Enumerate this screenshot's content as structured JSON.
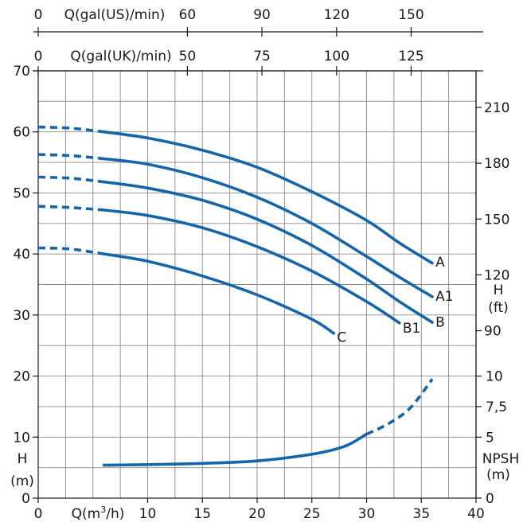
{
  "colors": {
    "curve": "#1565a8",
    "grid": "#8a8a8a",
    "axis": "#1a1a1a",
    "background": "#ffffff"
  },
  "chart_data": {
    "type": "line",
    "grid": true,
    "x": {
      "label_base": "Q(m",
      "label_sup": "3",
      "label_tail": "/h)",
      "range": [
        0,
        40
      ],
      "ticks": [
        0,
        10,
        15,
        20,
        25,
        30,
        35,
        40
      ]
    },
    "y_left": {
      "label": [
        "H",
        "(m)"
      ],
      "range": [
        0,
        70
      ],
      "ticks": [
        0,
        10,
        20,
        30,
        40,
        50,
        60,
        70
      ]
    },
    "top_axis_us": {
      "label": "Q(gal(US)/min)",
      "ticks": [
        {
          "label": "0",
          "x": 0
        },
        {
          "label": "60",
          "x": 13.63
        },
        {
          "label": "90",
          "x": 20.44
        },
        {
          "label": "120",
          "x": 27.26
        },
        {
          "label": "150",
          "x": 34.07
        }
      ]
    },
    "top_axis_uk": {
      "label": "Q(gal(UK)/min)",
      "ticks": [
        {
          "label": "0",
          "x": 0
        },
        {
          "label": "50",
          "x": 13.63
        },
        {
          "label": "75",
          "x": 20.44
        },
        {
          "label": "100",
          "x": 27.26
        },
        {
          "label": "125",
          "x": 34.07
        }
      ]
    },
    "right_axis_ft": {
      "label": [
        "H",
        "(ft)"
      ],
      "ticks": [
        {
          "label": "90",
          "y": 27.43
        },
        {
          "label": "120",
          "y": 36.58
        },
        {
          "label": "150",
          "y": 45.72
        },
        {
          "label": "180",
          "y": 54.86
        },
        {
          "label": "210",
          "y": 64.01
        }
      ]
    },
    "right_axis_npsh": {
      "label": [
        "NPSH",
        "(m)"
      ],
      "ticks": [
        {
          "label": "0",
          "y": 0
        },
        {
          "label": "5",
          "y": 10
        },
        {
          "label": "7,5",
          "y": 15
        },
        {
          "label": "10",
          "y": 20
        }
      ]
    },
    "series": [
      {
        "name": "A",
        "dashed": [
          [
            0,
            60.8
          ],
          [
            3,
            60.6
          ],
          [
            6,
            60.0
          ]
        ],
        "solid": [
          [
            6,
            60.0
          ],
          [
            10,
            59.0
          ],
          [
            15,
            57.0
          ],
          [
            20,
            54.2
          ],
          [
            25,
            50.2
          ],
          [
            30,
            45.5
          ],
          [
            33,
            41.8
          ],
          [
            36,
            38.5
          ]
        ]
      },
      {
        "name": "A1",
        "dashed": [
          [
            0,
            56.3
          ],
          [
            3,
            56.1
          ],
          [
            6,
            55.6
          ]
        ],
        "solid": [
          [
            6,
            55.6
          ],
          [
            10,
            54.7
          ],
          [
            15,
            52.5
          ],
          [
            20,
            49.3
          ],
          [
            25,
            45.0
          ],
          [
            30,
            39.6
          ],
          [
            33,
            36.2
          ],
          [
            36,
            33.0
          ]
        ]
      },
      {
        "name": "B",
        "dashed": [
          [
            0,
            52.6
          ],
          [
            3,
            52.4
          ],
          [
            6,
            51.8
          ]
        ],
        "solid": [
          [
            6,
            51.8
          ],
          [
            10,
            50.8
          ],
          [
            15,
            48.8
          ],
          [
            20,
            45.7
          ],
          [
            25,
            41.4
          ],
          [
            30,
            35.9
          ],
          [
            33,
            32.2
          ],
          [
            36,
            28.8
          ]
        ]
      },
      {
        "name": "B1",
        "dashed": [
          [
            0,
            47.8
          ],
          [
            3,
            47.6
          ],
          [
            6,
            47.2
          ]
        ],
        "solid": [
          [
            6,
            47.2
          ],
          [
            10,
            46.3
          ],
          [
            15,
            44.3
          ],
          [
            20,
            41.2
          ],
          [
            25,
            37.2
          ],
          [
            30,
            32.2
          ],
          [
            33,
            28.7
          ]
        ]
      },
      {
        "name": "C",
        "dashed": [
          [
            0,
            41.0
          ],
          [
            3,
            40.8
          ],
          [
            6,
            40.0
          ]
        ],
        "solid": [
          [
            6,
            40.0
          ],
          [
            10,
            38.8
          ],
          [
            15,
            36.4
          ],
          [
            20,
            33.3
          ],
          [
            25,
            29.3
          ],
          [
            27,
            27.0
          ]
        ]
      },
      {
        "name": "NPSH",
        "label": false,
        "dashed": [
          [
            30,
            10.5
          ],
          [
            32,
            12.2
          ],
          [
            34,
            14.8
          ],
          [
            36,
            19.5
          ]
        ],
        "solid": [
          [
            6,
            5.4
          ],
          [
            10,
            5.5
          ],
          [
            15,
            5.7
          ],
          [
            20,
            6.1
          ],
          [
            25,
            7.2
          ],
          [
            28,
            8.5
          ],
          [
            30,
            10.5
          ]
        ]
      }
    ],
    "curve_labels": [
      {
        "text": "A",
        "x": 36.3,
        "y": 38.7
      },
      {
        "text": "A1",
        "x": 36.3,
        "y": 33.1
      },
      {
        "text": "B",
        "x": 36.3,
        "y": 28.9
      },
      {
        "text": "B1",
        "x": 33.3,
        "y": 27.9
      },
      {
        "text": "C",
        "x": 27.3,
        "y": 26.4
      }
    ]
  }
}
